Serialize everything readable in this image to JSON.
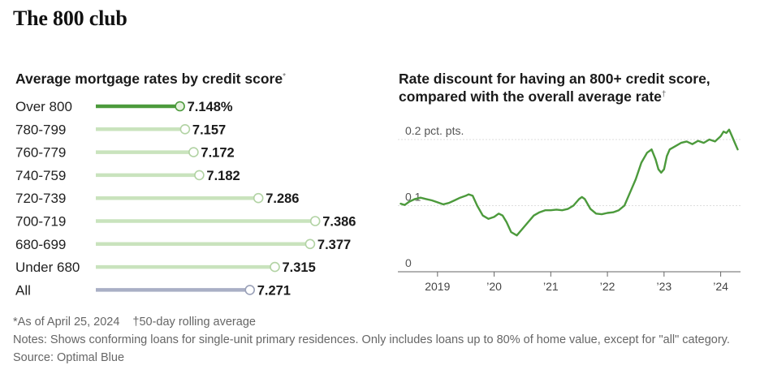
{
  "header": {
    "title": "The 800 club"
  },
  "left_chart_header": {
    "title": "Average mortgage rates by credit score",
    "marker": "*"
  },
  "right_chart_header": {
    "title_line1": "Rate discount for having an 800+ credit score,",
    "title_line2": "compared with the overall average rate",
    "marker": "†"
  },
  "chart_data": [
    {
      "type": "bar",
      "title": "Average mortgage rates by credit score",
      "categories": [
        "Over 800",
        "780-799",
        "760-779",
        "740-759",
        "720-739",
        "700-719",
        "680-699",
        "Under 680",
        "All"
      ],
      "values": [
        7.148,
        7.157,
        7.172,
        7.182,
        7.286,
        7.386,
        7.377,
        7.315,
        7.271
      ],
      "value_labels": [
        "7.148%",
        "7.157",
        "7.172",
        "7.182",
        "7.286",
        "7.386",
        "7.377",
        "7.315",
        "7.271"
      ],
      "xlim": [
        7.0,
        7.4
      ],
      "highlight": "Over 800",
      "colors": {
        "highlight": "#4c9a3c",
        "bar": "#c9e3bd",
        "all": "#a9afc5",
        "highlight_dot": "#4c9a3c",
        "dot_border": "#b2d3a4",
        "all_dot_border": "#9aa1b8"
      }
    },
    {
      "type": "line",
      "title": "Rate discount for having an 800+ credit score, compared with the overall average rate",
      "ylabel": "pct. pts.",
      "ylim": [
        0,
        0.2
      ],
      "yticks": [
        0,
        0.1,
        0.2
      ],
      "ytick_labels": [
        "0",
        "0.1",
        "0.2 pct. pts."
      ],
      "xlim": [
        2018.3,
        2024.35
      ],
      "xticks": [
        2019,
        2020,
        2021,
        2022,
        2023,
        2024
      ],
      "xtick_labels": [
        "2019",
        "’20",
        "’21",
        "’22",
        "’23",
        "’24"
      ],
      "line_color": "#4c9a3c",
      "series": [
        {
          "name": "Rate discount",
          "x": [
            2018.35,
            2018.42,
            2018.5,
            2018.6,
            2018.7,
            2018.8,
            2018.9,
            2019.0,
            2019.1,
            2019.2,
            2019.3,
            2019.4,
            2019.5,
            2019.55,
            2019.62,
            2019.7,
            2019.8,
            2019.9,
            2020.0,
            2020.08,
            2020.15,
            2020.22,
            2020.3,
            2020.4,
            2020.5,
            2020.6,
            2020.7,
            2020.8,
            2020.9,
            2021.0,
            2021.1,
            2021.2,
            2021.3,
            2021.4,
            2021.5,
            2021.55,
            2021.6,
            2021.7,
            2021.8,
            2021.9,
            2022.0,
            2022.1,
            2022.2,
            2022.3,
            2022.4,
            2022.5,
            2022.6,
            2022.7,
            2022.78,
            2022.85,
            2022.9,
            2022.95,
            2023.0,
            2023.05,
            2023.1,
            2023.2,
            2023.3,
            2023.4,
            2023.5,
            2023.6,
            2023.7,
            2023.8,
            2023.9,
            2024.0,
            2024.05,
            2024.1,
            2024.15,
            2024.2,
            2024.25,
            2024.3
          ],
          "values": [
            0.103,
            0.101,
            0.106,
            0.11,
            0.112,
            0.11,
            0.108,
            0.105,
            0.102,
            0.104,
            0.108,
            0.112,
            0.115,
            0.117,
            0.115,
            0.1,
            0.085,
            0.08,
            0.083,
            0.088,
            0.085,
            0.075,
            0.06,
            0.055,
            0.065,
            0.075,
            0.085,
            0.09,
            0.093,
            0.093,
            0.094,
            0.093,
            0.095,
            0.1,
            0.11,
            0.113,
            0.11,
            0.095,
            0.088,
            0.087,
            0.089,
            0.09,
            0.093,
            0.1,
            0.12,
            0.14,
            0.165,
            0.18,
            0.185,
            0.17,
            0.155,
            0.15,
            0.155,
            0.175,
            0.185,
            0.19,
            0.195,
            0.197,
            0.193,
            0.198,
            0.195,
            0.2,
            0.197,
            0.205,
            0.212,
            0.21,
            0.215,
            0.205,
            0.195,
            0.185
          ]
        }
      ]
    }
  ],
  "footnotes": {
    "as_of": "*As of April 25, 2024",
    "rolling": "†50-day rolling average",
    "notes": "Notes: Shows conforming loans for single-unit primary residences. Only includes loans up to 80% of home value, except for \"all\" category.",
    "source": "Source: Optimal Blue"
  }
}
